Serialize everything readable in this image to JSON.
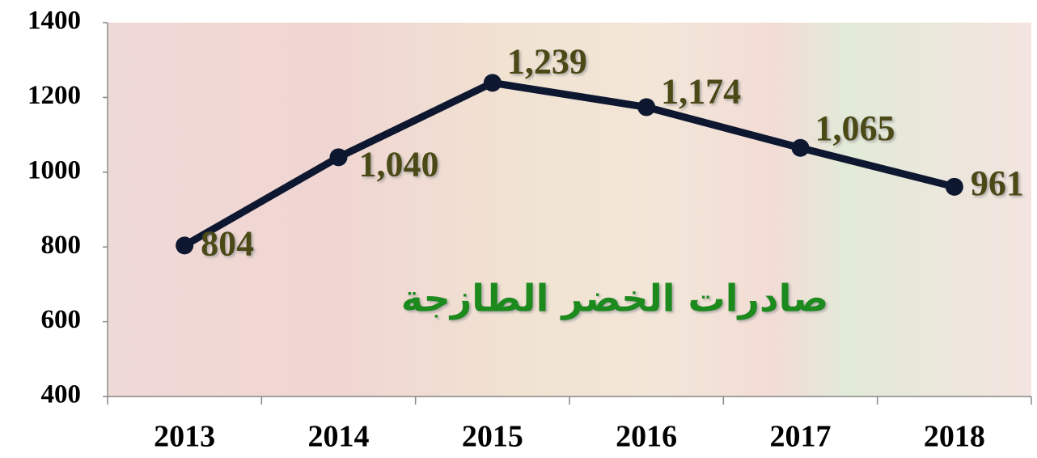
{
  "chart_data": {
    "type": "line",
    "title": "صادرات الخضر الطازجة",
    "categories": [
      "2013",
      "2014",
      "2015",
      "2016",
      "2017",
      "2018"
    ],
    "values": [
      804,
      1040,
      1239,
      1174,
      1065,
      961
    ],
    "value_labels": [
      "804",
      "1,040",
      "1,239",
      "1,174",
      "1,065",
      "961"
    ],
    "color": "#0d1730",
    "ylim": [
      400,
      1400
    ],
    "yticks": [
      400,
      600,
      800,
      1000,
      1200,
      1400
    ]
  }
}
